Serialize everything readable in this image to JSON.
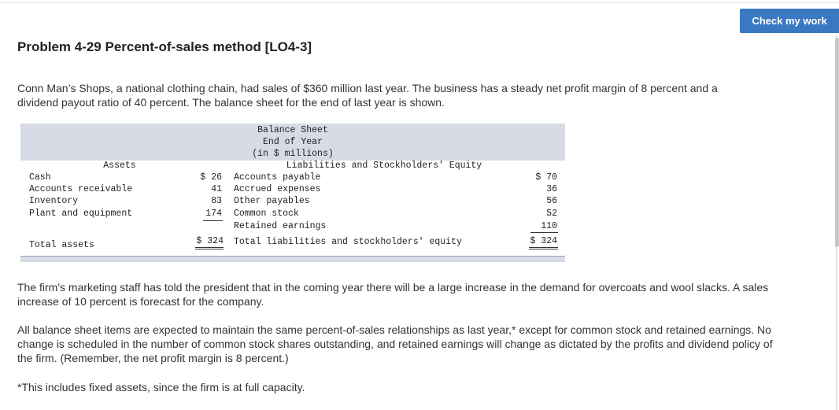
{
  "header": {
    "check_button": "Check my work"
  },
  "problem": {
    "title": "Problem 4-29 Percent-of-sales method [LO4-3]",
    "intro": "Conn Man’s Shops, a national clothing chain, had sales of $360 million last year. The business has a steady net profit margin of 8 percent and a dividend payout ratio of 40 percent. The balance sheet for the end of last year is shown.",
    "marketing": "The firm's marketing staff has told the president that in the coming year there will be a large increase in the demand for overcoats and wool slacks. A sales increase of 10 percent is forecast for the company.",
    "assumptions": "All balance sheet items are expected to maintain the same percent-of-sales relationships as last year,* except for common stock and retained earnings. No change is scheduled in the number of common stock shares outstanding, and retained earnings will change as dictated by the profits and dividend policy of the firm. (Remember, the net profit margin is 8 percent.)",
    "footnote": "*This includes fixed assets, since the firm is at full capacity."
  },
  "balance_sheet": {
    "title_lines": [
      "Balance Sheet",
      "End of Year",
      "(in $ millions)"
    ],
    "assets_heading": "Assets",
    "liabilities_heading": "Liabilities and Stockholders' Equity",
    "assets": [
      {
        "label": "Cash",
        "value": "$ 26"
      },
      {
        "label": "Accounts receivable",
        "value": "41"
      },
      {
        "label": "Inventory",
        "value": "83"
      },
      {
        "label": "Plant and equipment",
        "value": "174"
      }
    ],
    "liabilities": [
      {
        "label": "Accounts payable",
        "value": "$ 70"
      },
      {
        "label": "Accrued expenses",
        "value": "36"
      },
      {
        "label": "Other payables",
        "value": "56"
      },
      {
        "label": "Common stock",
        "value": "52"
      },
      {
        "label": "Retained earnings",
        "value": "110"
      }
    ],
    "total_assets_label": "Total assets",
    "total_assets_value": "$ 324",
    "total_liabilities_label": "Total liabilities and stockholders' equity",
    "total_liabilities_value": "$ 324"
  }
}
